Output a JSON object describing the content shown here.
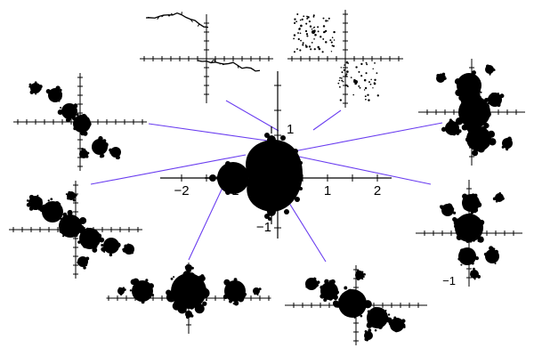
{
  "colors": {
    "background": "#ffffff",
    "fractal": "#000000",
    "axis": "#000000",
    "connector": "#6a3df0"
  },
  "center_plot": {
    "x_tick_labels": [
      "−2",
      "−1",
      "1",
      "2"
    ],
    "y_tick_labels": [
      "1",
      "−1"
    ]
  },
  "julia_sets": [
    {
      "name": "dendrite-julia-set"
    },
    {
      "name": "dust-julia-set"
    },
    {
      "name": "rabbit-julia-set"
    },
    {
      "name": "upper-left-julia-set"
    },
    {
      "name": "left-diagonal-julia-set"
    },
    {
      "name": "right-julia-set"
    },
    {
      "name": "basilica-julia-set"
    },
    {
      "name": "bottom-diagonal-julia-set"
    }
  ],
  "partial_label": "−1"
}
